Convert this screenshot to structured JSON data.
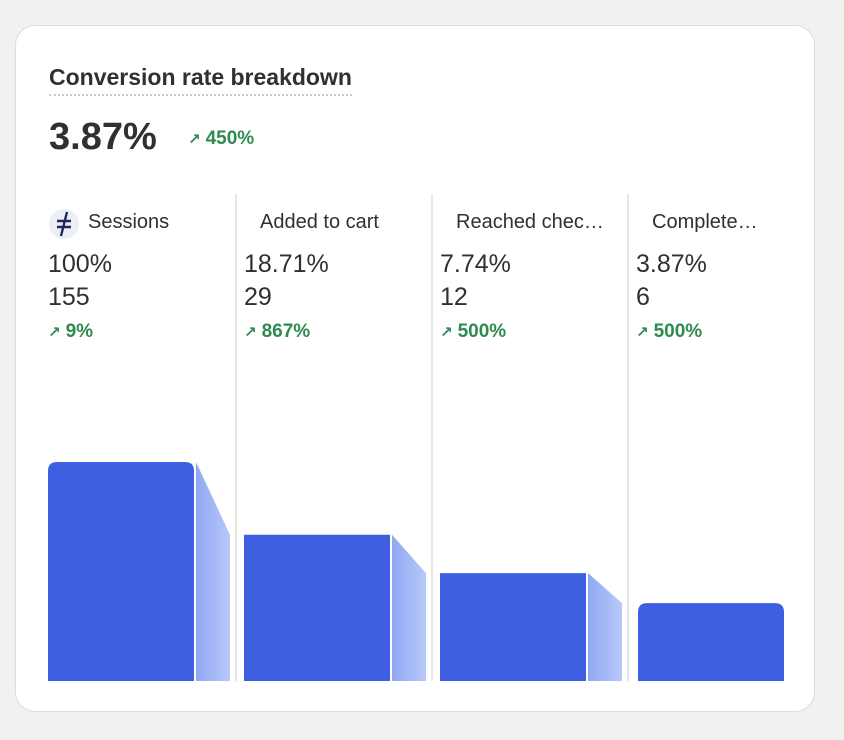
{
  "chart_data": {
    "type": "funnel",
    "title": "Conversion rate breakdown",
    "summary_label": "3.87%",
    "summary_change_label": "450%",
    "categories": [
      "Sessions",
      "Added to cart",
      "Reached chec…",
      "Complete…"
    ],
    "values": [
      155,
      29,
      12,
      6
    ],
    "percent_labels": [
      "100%",
      "18.71%",
      "7.74%",
      "3.87%"
    ],
    "change_labels": [
      "9%",
      "867%",
      "500%",
      "500%"
    ],
    "color": "#3d5fe0",
    "connector_color": "#a6baf7",
    "ylim": [
      1,
      1000
    ],
    "log_scale": true
  }
}
